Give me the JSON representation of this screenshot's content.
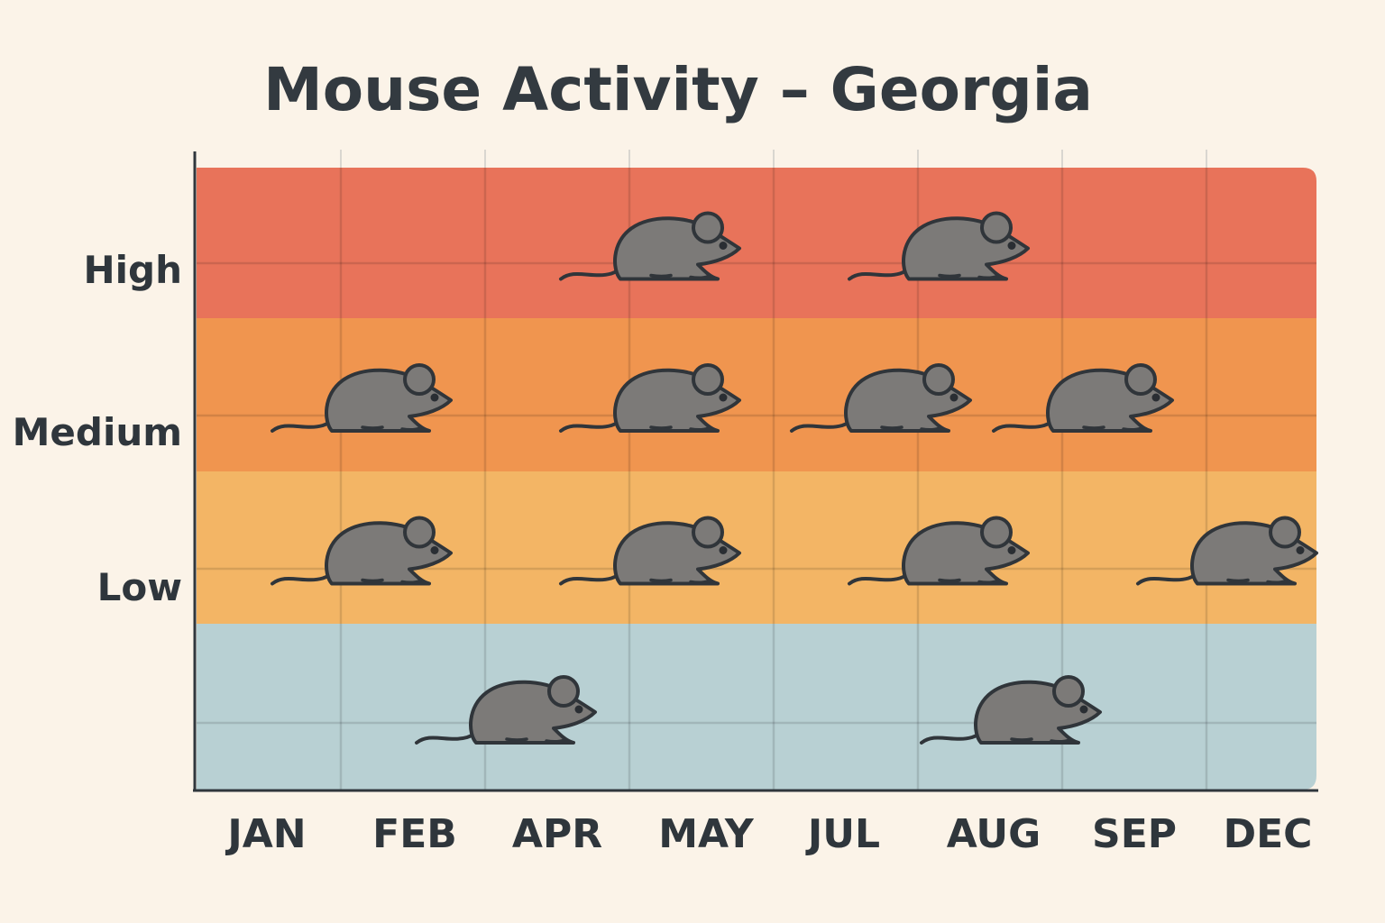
{
  "chart_data": {
    "type": "scatter",
    "title": "Mouse Activity – Georgia",
    "xlabel": "",
    "ylabel": "",
    "categories": [
      "JAN",
      "FEB",
      "APR",
      "MAY",
      "JUL",
      "AUG",
      "SEP",
      "DEC"
    ],
    "levels": [
      {
        "label": "",
        "color": "#b8d0d3"
      },
      {
        "label": "Low",
        "color": "#f3b565"
      },
      {
        "label": "Medium",
        "color": "#f0954f"
      },
      {
        "label": "High",
        "color": "#e8735a"
      }
    ],
    "points": [
      {
        "x": 2.9,
        "level": "High"
      },
      {
        "x": 4.9,
        "level": "High"
      },
      {
        "x": 0.9,
        "level": "Medium"
      },
      {
        "x": 2.9,
        "level": "Medium"
      },
      {
        "x": 4.5,
        "level": "Medium"
      },
      {
        "x": 5.9,
        "level": "Medium"
      },
      {
        "x": 0.9,
        "level": "Low"
      },
      {
        "x": 2.9,
        "level": "Low"
      },
      {
        "x": 4.9,
        "level": "Low"
      },
      {
        "x": 6.9,
        "level": "Low"
      },
      {
        "x": 1.9,
        "level": ""
      },
      {
        "x": 5.4,
        "level": ""
      }
    ],
    "grid": true,
    "legend": "none",
    "marker_icon": "mouse-icon",
    "marker_color": "#7c7a78",
    "axis_color": "#2f363c"
  }
}
